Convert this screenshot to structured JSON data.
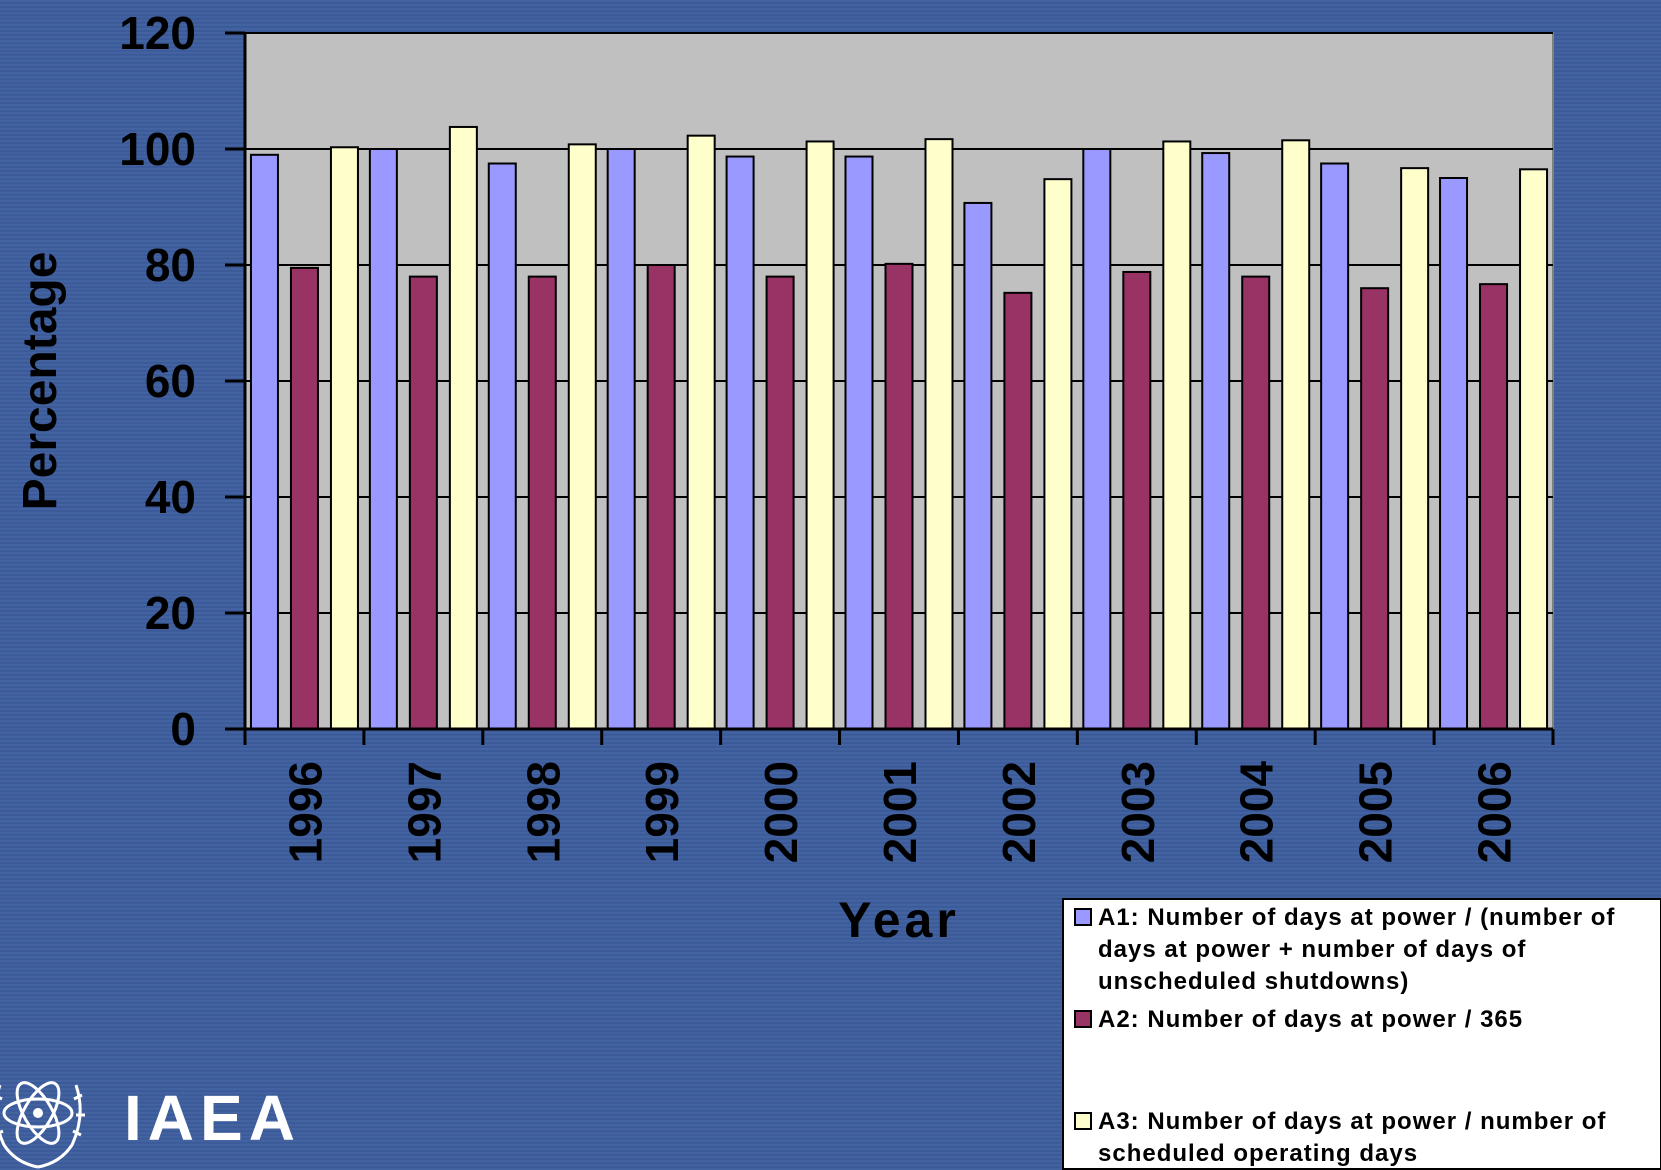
{
  "chart_data": {
    "type": "bar",
    "categories": [
      "1996",
      "1997",
      "1998",
      "1999",
      "2000",
      "2001",
      "2002",
      "2003",
      "2004",
      "2005",
      "2006"
    ],
    "series": [
      {
        "name": "A1: Number of days at power / (number of days at power + number of days of unscheduled shutdowns)",
        "color": "#9999ff",
        "values": [
          99,
          100,
          97.5,
          100,
          98.7,
          98.7,
          90.7,
          100,
          99.3,
          97.5,
          95
        ]
      },
      {
        "name": "A2: Number of days at power / 365",
        "color": "#993366",
        "values": [
          79.5,
          78,
          78,
          80,
          78,
          80.2,
          75.2,
          78.8,
          78,
          76,
          76.7
        ]
      },
      {
        "name": "A3: Number of days at power / number of scheduled operating days",
        "color": "#ffffcc",
        "values": [
          100.3,
          103.8,
          100.8,
          102.3,
          101.3,
          101.7,
          94.8,
          101.3,
          101.5,
          96.7,
          96.5
        ]
      }
    ],
    "yticks": [
      "0",
      "20",
      "40",
      "60",
      "80",
      "100",
      "120"
    ],
    "ylim": [
      0,
      120
    ],
    "xlabel": "Year",
    "ylabel": "Percentage",
    "grid": true,
    "legend_position": "bottom-right",
    "plot_background": "#c0c0c0"
  },
  "logo": {
    "text": "IAEA"
  }
}
